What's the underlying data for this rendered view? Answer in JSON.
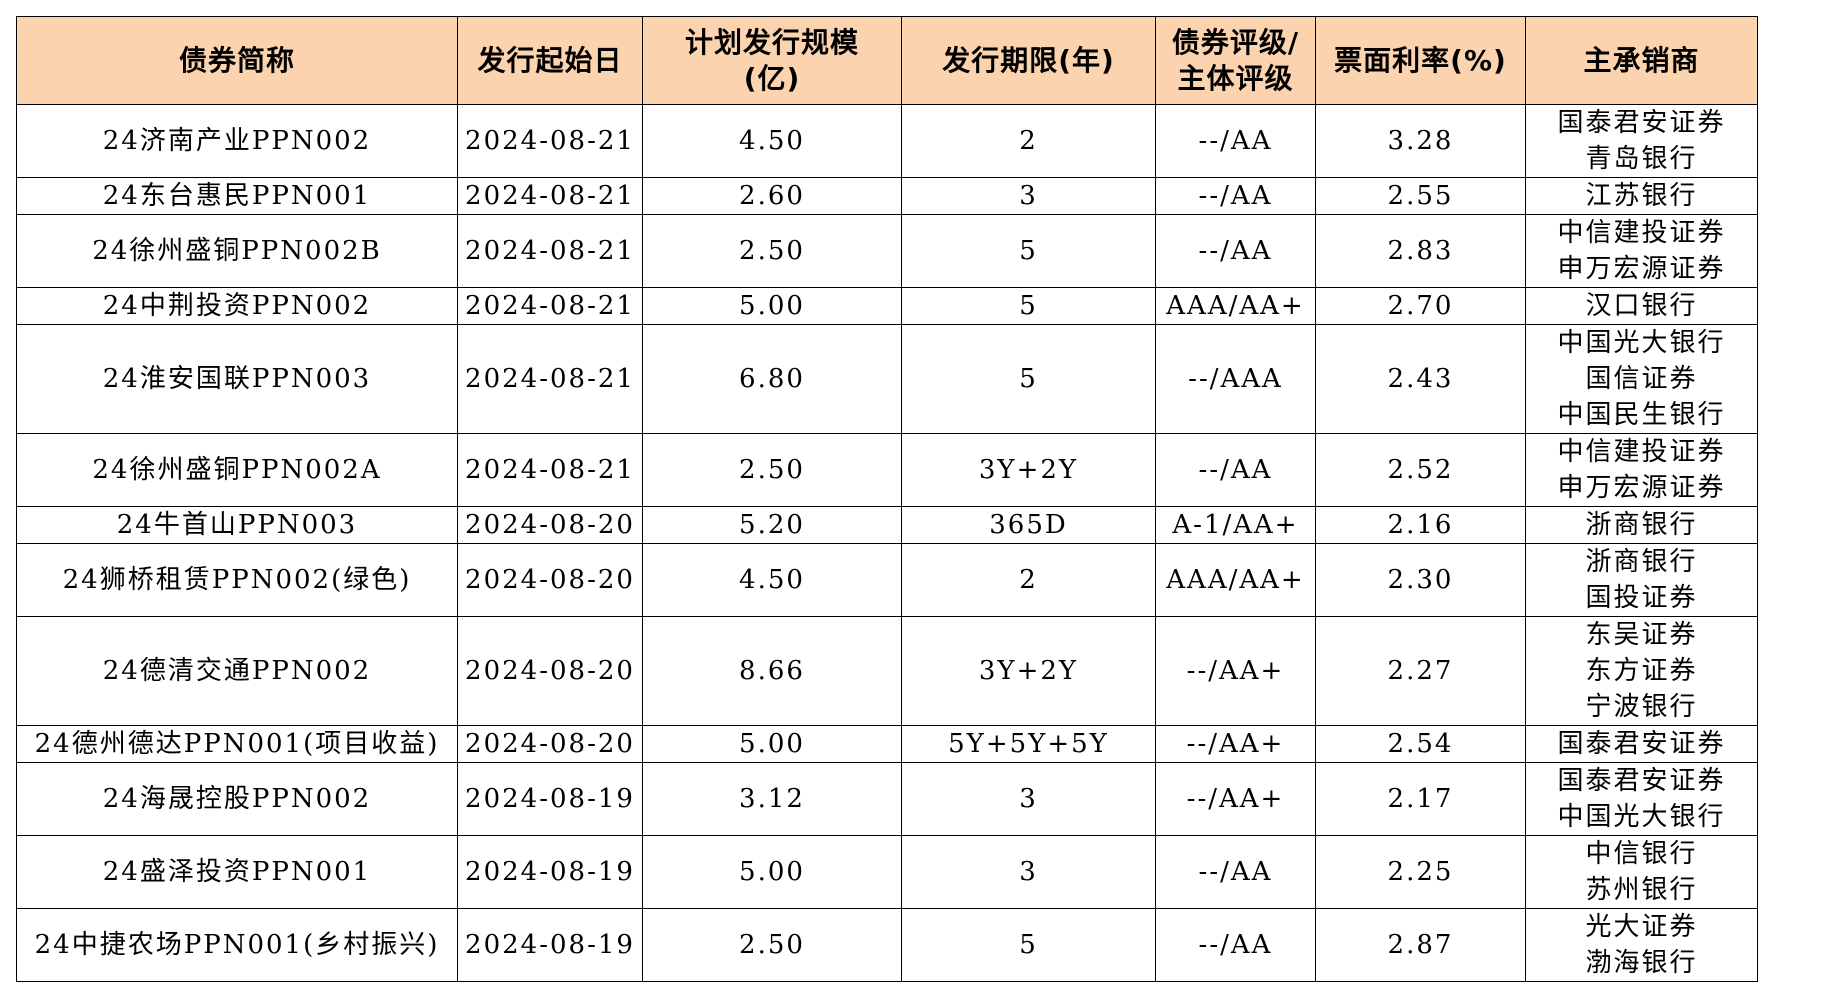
{
  "table": {
    "headers": [
      [
        "债券简称"
      ],
      [
        "发行起始日"
      ],
      [
        "计划发行规模",
        "(亿)"
      ],
      [
        "发行期限(年)"
      ],
      [
        "债券评级/",
        "主体评级"
      ],
      [
        "票面利率(%)"
      ],
      [
        "主承销商"
      ]
    ],
    "rows": [
      {
        "name": "24济南产业PPN002",
        "date": "2024-08-21",
        "scale": "4.50",
        "term": "2",
        "rating": "--/AA",
        "rate": "3.28",
        "managers": [
          "国泰君安证券",
          "青岛银行"
        ]
      },
      {
        "name": "24东台惠民PPN001",
        "date": "2024-08-21",
        "scale": "2.60",
        "term": "3",
        "rating": "--/AA",
        "rate": "2.55",
        "managers": [
          "江苏银行"
        ]
      },
      {
        "name": "24徐州盛铜PPN002B",
        "date": "2024-08-21",
        "scale": "2.50",
        "term": "5",
        "rating": "--/AA",
        "rate": "2.83",
        "managers": [
          "中信建投证券",
          "申万宏源证券"
        ]
      },
      {
        "name": "24中荆投资PPN002",
        "date": "2024-08-21",
        "scale": "5.00",
        "term": "5",
        "rating": "AAA/AA+",
        "rate": "2.70",
        "managers": [
          "汉口银行"
        ]
      },
      {
        "name": "24淮安国联PPN003",
        "date": "2024-08-21",
        "scale": "6.80",
        "term": "5",
        "rating": "--/AAA",
        "rate": "2.43",
        "managers": [
          "中国光大银行",
          "国信证券",
          "中国民生银行"
        ]
      },
      {
        "name": "24徐州盛铜PPN002A",
        "date": "2024-08-21",
        "scale": "2.50",
        "term": "3Y+2Y",
        "rating": "--/AA",
        "rate": "2.52",
        "managers": [
          "中信建投证券",
          "申万宏源证券"
        ]
      },
      {
        "name": "24牛首山PPN003",
        "date": "2024-08-20",
        "scale": "5.20",
        "term": "365D",
        "rating": "A-1/AA+",
        "rate": "2.16",
        "managers": [
          "浙商银行"
        ]
      },
      {
        "name": "24狮桥租赁PPN002(绿色)",
        "date": "2024-08-20",
        "scale": "4.50",
        "term": "2",
        "rating": "AAA/AA+",
        "rate": "2.30",
        "managers": [
          "浙商银行",
          "国投证券"
        ]
      },
      {
        "name": "24德清交通PPN002",
        "date": "2024-08-20",
        "scale": "8.66",
        "term": "3Y+2Y",
        "rating": "--/AA+",
        "rate": "2.27",
        "managers": [
          "东吴证券",
          "东方证券",
          "宁波银行"
        ]
      },
      {
        "name": "24德州德达PPN001(项目收益)",
        "date": "2024-08-20",
        "scale": "5.00",
        "term": "5Y+5Y+5Y",
        "rating": "--/AA+",
        "rate": "2.54",
        "managers": [
          "国泰君安证券"
        ]
      },
      {
        "name": "24海晟控股PPN002",
        "date": "2024-08-19",
        "scale": "3.12",
        "term": "3",
        "rating": "--/AA+",
        "rate": "2.17",
        "managers": [
          "国泰君安证券",
          "中国光大银行"
        ]
      },
      {
        "name": "24盛泽投资PPN001",
        "date": "2024-08-19",
        "scale": "5.00",
        "term": "3",
        "rating": "--/AA",
        "rate": "2.25",
        "managers": [
          "中信银行",
          "苏州银行"
        ]
      },
      {
        "name": "24中捷农场PPN001(乡村振兴)",
        "date": "2024-08-19",
        "scale": "2.50",
        "term": "5",
        "rating": "--/AA",
        "rate": "2.87",
        "managers": [
          "光大证券",
          "渤海银行"
        ]
      }
    ]
  },
  "colors": {
    "header_bg": "#fbd3ae",
    "border": "#000000",
    "text": "#000000"
  }
}
